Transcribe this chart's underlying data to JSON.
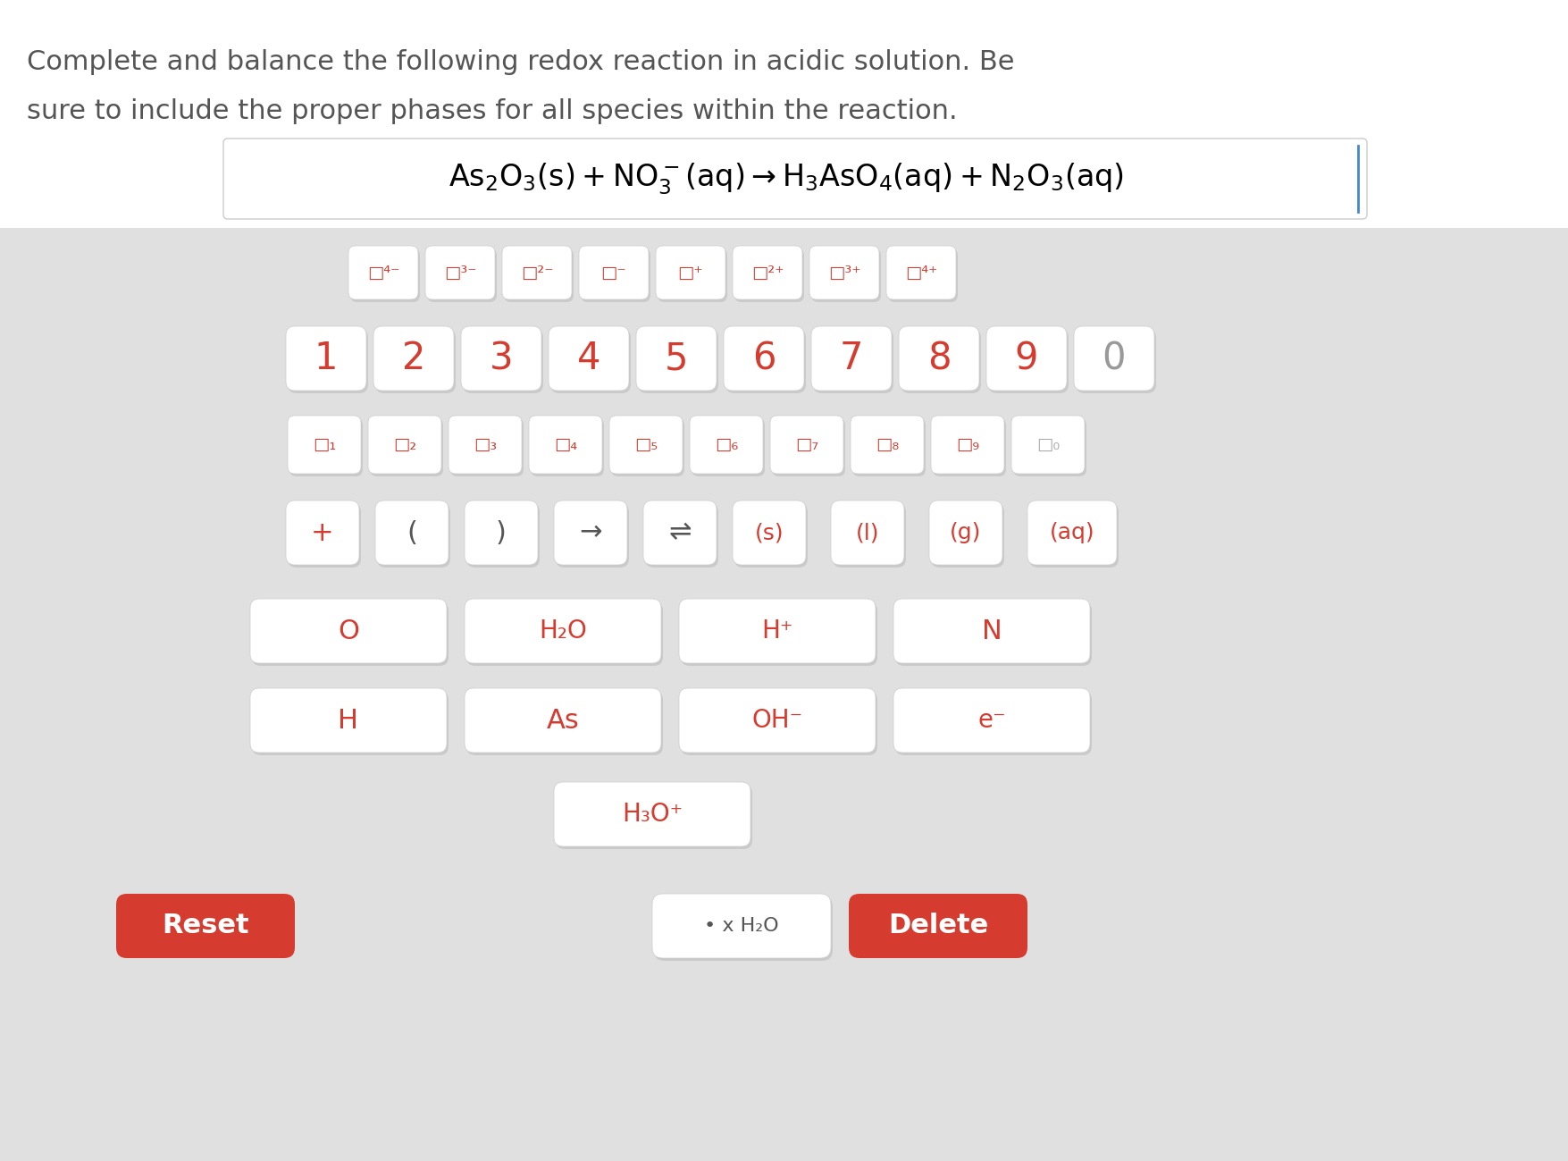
{
  "bg_color": "#e8e8e8",
  "white": "#ffffff",
  "red": "#d63b2f",
  "dark_gray": "#555555",
  "title_text1": "Complete and balance the following redox reaction in acidic solution. Be",
  "title_text2": "sure to include the proper phases for all species within the reaction.",
  "equation": "As₂O₃(s) + NO₃⁻(aq) → H₃AsO₄(aq) + N₂O₃(aq)",
  "row0_labels": [
    "□4-",
    "□3-",
    "□2-",
    "□-",
    "□+",
    "□2+",
    "□3+",
    "□4+"
  ],
  "row1_labels": [
    "1",
    "2",
    "3",
    "4",
    "5",
    "6",
    "7",
    "8",
    "9",
    "0"
  ],
  "row2_labels": [
    "□₁",
    "□₂",
    "□₃",
    "□₄",
    "□₅",
    "□₆",
    "□₇",
    "□₈",
    "□₉",
    "□₀"
  ],
  "row3_labels": [
    "+",
    "(",
    ")",
    "→",
    "⇌",
    "(s)",
    "(l)",
    "(g)",
    "(aq)"
  ],
  "row4_labels": [
    "O",
    "H₂O",
    "H⁺",
    "N"
  ],
  "row5_labels": [
    "H",
    "As",
    "OH⁻",
    "e⁻"
  ],
  "row6_labels": [
    "H₃O⁺"
  ],
  "bottom_left": "Reset",
  "bottom_right": "Delete"
}
